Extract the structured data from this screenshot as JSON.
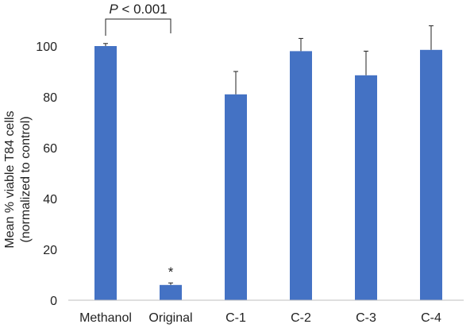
{
  "chart_data": {
    "type": "bar",
    "categories": [
      "Methanol",
      "Original",
      "C-1",
      "C-2",
      "C-3",
      "C-4"
    ],
    "values": [
      100,
      6,
      81,
      98,
      88.5,
      98.5
    ],
    "errors": [
      1,
      0.8,
      9,
      5,
      9.5,
      9.5
    ],
    "ylim": [
      0,
      100
    ],
    "yticks": [
      0,
      20,
      40,
      60,
      80,
      100
    ],
    "ylabel_line1": "Mean % viable T84 cells",
    "ylabel_line2": "(normalized to control)",
    "bar_color": "#4472C4",
    "grid": false,
    "annotations": {
      "significance_italic": "P",
      "significance_rest": " < 0.001",
      "bracket_between": [
        "Methanol",
        "Original"
      ],
      "asterisk": "*",
      "asterisk_category": "Original"
    }
  }
}
